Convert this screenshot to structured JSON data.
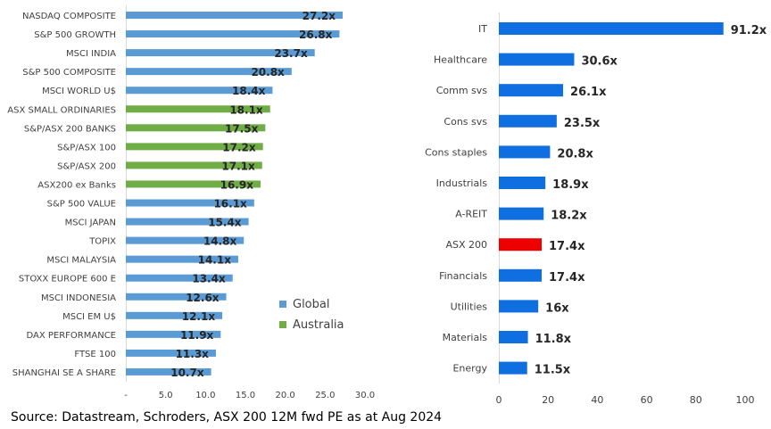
{
  "chart_data": [
    {
      "type": "bar",
      "orientation": "horizontal",
      "categories": [
        "NASDAQ COMPOSITE",
        "S&P 500 GROWTH",
        "MSCI INDIA",
        "S&P 500 COMPOSITE",
        "MSCI WORLD U$",
        "ASX SMALL ORDINARIES",
        "S&P/ASX 200 BANKS",
        "S&P/ASX 100",
        "S&P/ASX 200",
        "ASX200 ex Banks",
        "S&P 500 VALUE",
        "MSCI JAPAN",
        "TOPIX",
        "MSCI MALAYSIA",
        "STOXX EUROPE 600 E",
        "MSCI INDONESIA",
        "MSCI EM U$",
        "DAX PERFORMANCE",
        "FTSE 100",
        "SHANGHAI SE A SHARE"
      ],
      "values": [
        27.2,
        26.8,
        23.7,
        20.8,
        18.4,
        18.1,
        17.5,
        17.2,
        17.1,
        16.9,
        16.1,
        15.4,
        14.8,
        14.1,
        13.4,
        12.6,
        12.1,
        11.9,
        11.3,
        10.7
      ],
      "value_labels": [
        "27.2x",
        "26.8x",
        "23.7x",
        "20.8x",
        "18.4x",
        "18.1x",
        "17.5x",
        "17.2x",
        "17.1x",
        "16.9x",
        "16.1x",
        "15.4x",
        "14.8x",
        "14.1x",
        "13.4x",
        "12.6x",
        "12.1x",
        "11.9x",
        "11.3x",
        "10.7x"
      ],
      "groups": [
        "Global",
        "Global",
        "Global",
        "Global",
        "Global",
        "Australia",
        "Australia",
        "Australia",
        "Australia",
        "Australia",
        "Global",
        "Global",
        "Global",
        "Global",
        "Global",
        "Global",
        "Global",
        "Global",
        "Global",
        "Global"
      ],
      "xlim": [
        0,
        30
      ],
      "ticks": [
        0,
        5,
        10,
        15,
        20,
        25,
        30
      ],
      "tick_labels": [
        "-",
        "5.0",
        "10.0",
        "15.0",
        "20.0",
        "25.0",
        "30.0"
      ],
      "legend": [
        {
          "name": "Global",
          "color": "#5b9bd5"
        },
        {
          "name": "Australia",
          "color": "#70ad47"
        }
      ],
      "legend_position": "lower-right",
      "grid": false
    },
    {
      "type": "bar",
      "orientation": "horizontal",
      "categories": [
        "IT",
        "Healthcare",
        "Comm svs",
        "Cons svs",
        "Cons staples",
        "Industrials",
        "A-REIT",
        "ASX 200",
        "Financials",
        "Utilities",
        "Materials",
        "Energy"
      ],
      "values": [
        91.2,
        30.6,
        26.1,
        23.5,
        20.8,
        18.9,
        18.2,
        17.4,
        17.4,
        16,
        11.8,
        11.5
      ],
      "value_labels": [
        "91.2x",
        "30.6x",
        "26.1x",
        "23.5x",
        "20.8x",
        "18.9x",
        "18.2x",
        "17.4x",
        "17.4x",
        "16x",
        "11.8x",
        "11.5x"
      ],
      "bar_colors": [
        "#0f6fe0",
        "#0f6fe0",
        "#0f6fe0",
        "#0f6fe0",
        "#0f6fe0",
        "#0f6fe0",
        "#0f6fe0",
        "#ee0000",
        "#0f6fe0",
        "#0f6fe0",
        "#0f6fe0",
        "#0f6fe0"
      ],
      "xlim": [
        0,
        100
      ],
      "ticks": [
        0,
        20,
        40,
        60,
        80,
        100
      ],
      "tick_labels": [
        "0",
        "20",
        "40",
        "60",
        "80",
        "100"
      ],
      "grid": false
    }
  ],
  "source": "Source: Datastream, Schroders, ASX 200 12M fwd PE as at Aug 2024"
}
